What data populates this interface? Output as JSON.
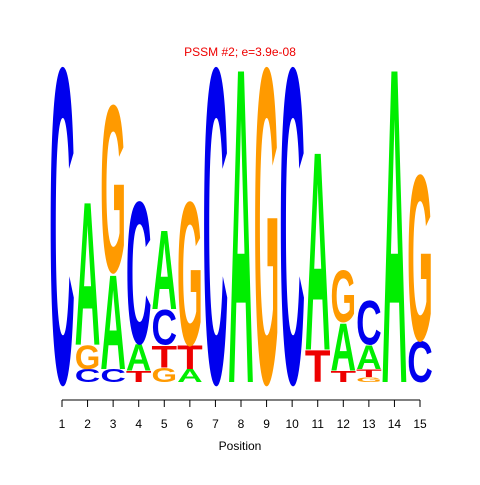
{
  "chart_data": {
    "type": "logo",
    "title": "PSSM #2; e=3.9e-08",
    "xlabel": "Position",
    "x": [
      1,
      2,
      3,
      4,
      5,
      6,
      7,
      8,
      9,
      10,
      11,
      12,
      13,
      14,
      15
    ],
    "xlim": [
      0.5,
      15.5
    ],
    "xticks": [
      1,
      2,
      3,
      4,
      5,
      6,
      7,
      8,
      9,
      10,
      11,
      12,
      13,
      14,
      15
    ],
    "ylim": [
      0,
      2
    ],
    "series": [
      {
        "name": "A",
        "color": "#00ee00",
        "values": [
          0,
          0.91,
          0.6,
          0.17,
          0.5,
          0.08,
          0,
          2.0,
          0,
          0,
          1.26,
          0.3,
          0.15,
          2.0,
          0
        ]
      },
      {
        "name": "C",
        "color": "#0000ee",
        "values": [
          2.0,
          0.08,
          0.08,
          0.9,
          0.22,
          0,
          2.0,
          0,
          0,
          2.0,
          0,
          0,
          0.28,
          0,
          0.26
        ]
      },
      {
        "name": "G",
        "color": "#ff9a00",
        "values": [
          0,
          0.15,
          1.06,
          0,
          0.09,
          0.91,
          0,
          0,
          2.0,
          0,
          0,
          0.33,
          0.03,
          0,
          1.05
        ]
      },
      {
        "name": "T",
        "color": "#ee0000",
        "values": [
          0,
          0,
          0,
          0.07,
          0.14,
          0.15,
          0,
          0,
          0,
          0,
          0.2,
          0.07,
          0.05,
          0,
          0
        ]
      }
    ]
  }
}
